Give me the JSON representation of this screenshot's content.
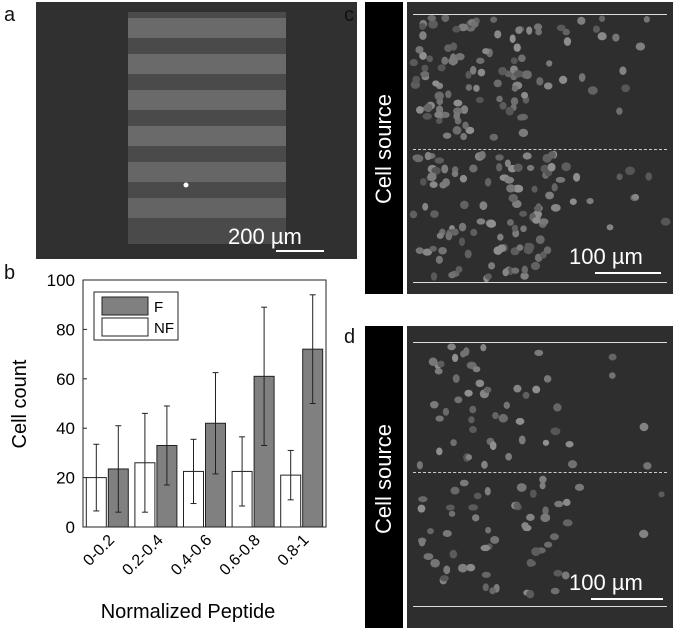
{
  "panels": {
    "a": {
      "letter": "a",
      "scale_label": "200 µm"
    },
    "b": {
      "letter": "b"
    },
    "c": {
      "letter": "c",
      "scale_label": "100 µm",
      "source_label": "Cell source"
    },
    "d": {
      "letter": "d",
      "scale_label": "100 µm",
      "source_label": "Cell source"
    }
  },
  "colors": {
    "F": "#808080",
    "NF": "#ffffff",
    "micro_bg": "#2e2e2e"
  },
  "chart_data": {
    "type": "bar",
    "categories": [
      "0-0.2",
      "0.2-0.4",
      "0.4-0.6",
      "0.6-0.8",
      "0.8-1"
    ],
    "xlabel": "Normalized Peptide",
    "ylabel": "Cell count",
    "ylim": [
      0,
      100
    ],
    "yticks": [
      "0",
      "20",
      "40",
      "60",
      "80",
      "100"
    ],
    "legend_position": "top-left",
    "series": [
      {
        "name": "NF",
        "values": [
          20,
          26,
          22.5,
          22.5,
          21
        ],
        "err": [
          13.5,
          20,
          13,
          14,
          10
        ]
      },
      {
        "name": "F",
        "values": [
          23.5,
          33,
          42,
          61,
          72
        ],
        "err": [
          17.5,
          16,
          20.5,
          28,
          22
        ]
      }
    ]
  }
}
